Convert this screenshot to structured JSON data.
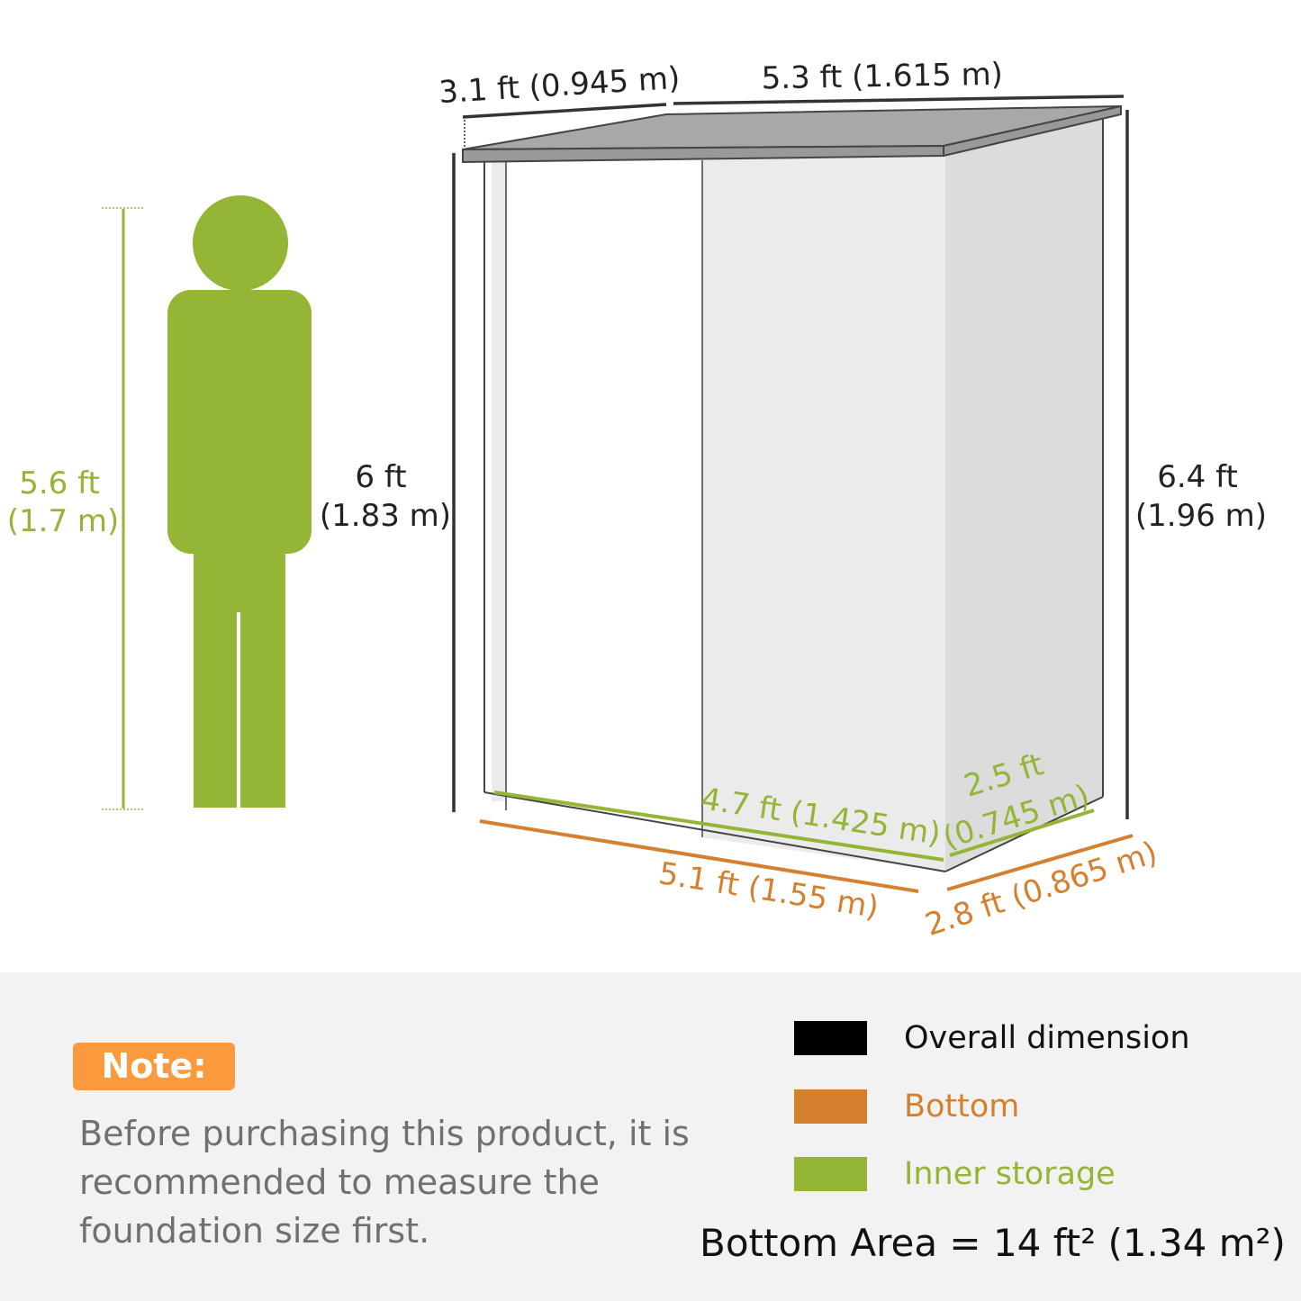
{
  "colors": {
    "overall": "#000000",
    "bottom": "#d5802e",
    "inner": "#94b536",
    "note": "#fa9a3c"
  },
  "person": {
    "height_ft": "5.6 ft",
    "height_m": "(1.7 m)"
  },
  "shed": {
    "roof_depth": "3.1 ft (0.945 m)",
    "roof_width": "5.3 ft (1.615 m)",
    "front_height_ft": "6 ft",
    "front_height_m": "(1.83 m)",
    "back_height_ft": "6.4 ft",
    "back_height_m": "(1.96 m)",
    "inner_width": "4.7 ft (1.425 m)",
    "inner_depth_ft": "2.5 ft",
    "inner_depth_m": "(0.745 m)",
    "bottom_width": "5.1 ft (1.55 m)",
    "bottom_depth": "2.8 ft (0.865 m)"
  },
  "note": {
    "title": "Note:",
    "text": "Before purchasing this product, it is recommended to measure the foundation size first."
  },
  "legend": [
    {
      "label": "Overall dimension"
    },
    {
      "label": "Bottom"
    },
    {
      "label": "Inner storage"
    }
  ],
  "bottom_area": "Bottom Area = 14 ft² (1.34 m²)"
}
